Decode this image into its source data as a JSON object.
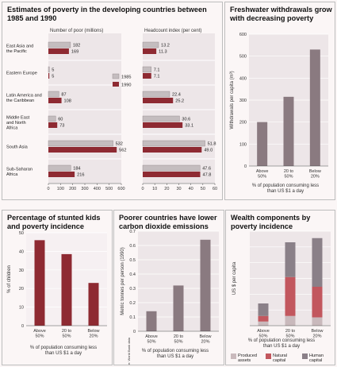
{
  "panels": {
    "poverty": {
      "title": "Estimates of poverty in the developing countries between 1985 and 1990"
    },
    "water": {
      "title": "Freshwater withdrawals grow with decreasing poverty"
    },
    "stunted": {
      "title": "Percentage of stunted kids and poverty incidence"
    },
    "co2": {
      "title": "Poorer countries have lower carbon dioxide emissions"
    },
    "wealth": {
      "title": "Wealth components by poverty incidence"
    }
  },
  "colors": {
    "bar_primary": "#8e2a32",
    "bar_1985": "#c4bdbf",
    "produced": "#c9b9bc",
    "natural": "#c2575e",
    "human": "#8a8088"
  },
  "chart_data": [
    {
      "id": "poverty_number",
      "type": "bar",
      "orientation": "horizontal",
      "xlabel": "Number of poor (millions)",
      "xticks": [
        "0",
        "100",
        "200",
        "300",
        "400",
        "500",
        "600"
      ],
      "xlim": [
        0,
        600
      ],
      "categories": [
        "East Asia and the Pacific",
        "Eastern Europe",
        "Latin America and the Caribbean",
        "Middle East and North Africa",
        "South Asia",
        "Sub-Saharan Africa"
      ],
      "series": [
        {
          "name": "1985",
          "values": [
            182,
            5,
            87,
            60,
            532,
            184
          ]
        },
        {
          "name": "1990",
          "values": [
            169,
            5,
            108,
            73,
            562,
            216
          ]
        }
      ]
    },
    {
      "id": "poverty_headcount",
      "type": "bar",
      "orientation": "horizontal",
      "xlabel": "Headcount index (per cent)",
      "xticks": [
        "0",
        "10",
        "20",
        "30",
        "40",
        "50",
        "60"
      ],
      "xlim": [
        0,
        60
      ],
      "categories": [
        "East Asia and the Pacific",
        "Eastern Europe",
        "Latin America and the Caribbean",
        "Middle East and North Africa",
        "South Asia",
        "Sub-Saharan Africa"
      ],
      "series": [
        {
          "name": "1985",
          "values": [
            "13.2",
            "7.1",
            "22.4",
            "30.6",
            "51.8",
            "47.6"
          ]
        },
        {
          "name": "1990",
          "values": [
            "11.3",
            "7.1",
            "25.2",
            "33.1",
            "49.0",
            "47.8"
          ]
        }
      ]
    },
    {
      "id": "water",
      "type": "bar",
      "ylabel": "Withdrawals per capita (m³)",
      "yticks": [
        "0",
        "100",
        "200",
        "300",
        "400",
        "500",
        "600"
      ],
      "ylim": [
        0,
        600
      ],
      "categories": [
        "Above 50%",
        "20 to 50%",
        "Below 20%"
      ],
      "values": [
        200,
        315,
        530
      ],
      "xlabel": "% of population consuming less than US $1 a day"
    },
    {
      "id": "stunted",
      "type": "bar",
      "ylabel": "% of children",
      "yticks": [
        "0",
        "10",
        "20",
        "30",
        "40",
        "50"
      ],
      "ylim": [
        0,
        50
      ],
      "categories": [
        "Above 50%",
        "20 to 50%",
        "Below 20%"
      ],
      "values": [
        46,
        38.5,
        23
      ],
      "xlabel": "% of population consuming less than US $1 a day"
    },
    {
      "id": "co2",
      "type": "bar",
      "ylabel": "Metric tonnes per person (1990)",
      "yticks": [
        "0",
        "0.1",
        "0.2",
        "0.3",
        "0.4",
        "0.5",
        "0.6",
        "0.7"
      ],
      "ylim": [
        0,
        0.7
      ],
      "categories": [
        "Above 50%",
        "20 to 50%",
        "Below 20%"
      ],
      "values": [
        0.14,
        0.32,
        0.64
      ],
      "xlabel": "% of population consuming less than US $1 a day",
      "source": "Source: World Bank data"
    },
    {
      "id": "wealth",
      "type": "bar",
      "stacked": true,
      "ylabel": "US $ per capita",
      "categories": [
        "Above 50%",
        "20 to 50%",
        "Below 20%"
      ],
      "series": [
        {
          "name": "Produced assets",
          "values": [
            1500,
            3500,
            3000
          ]
        },
        {
          "name": "Natural capital",
          "values": [
            2000,
            14000,
            11000
          ]
        },
        {
          "name": "Human capital",
          "values": [
            4500,
            12500,
            17500
          ]
        }
      ],
      "ymax": 34000,
      "xlabel": "% of population consuming less than US $1 a day"
    }
  ]
}
